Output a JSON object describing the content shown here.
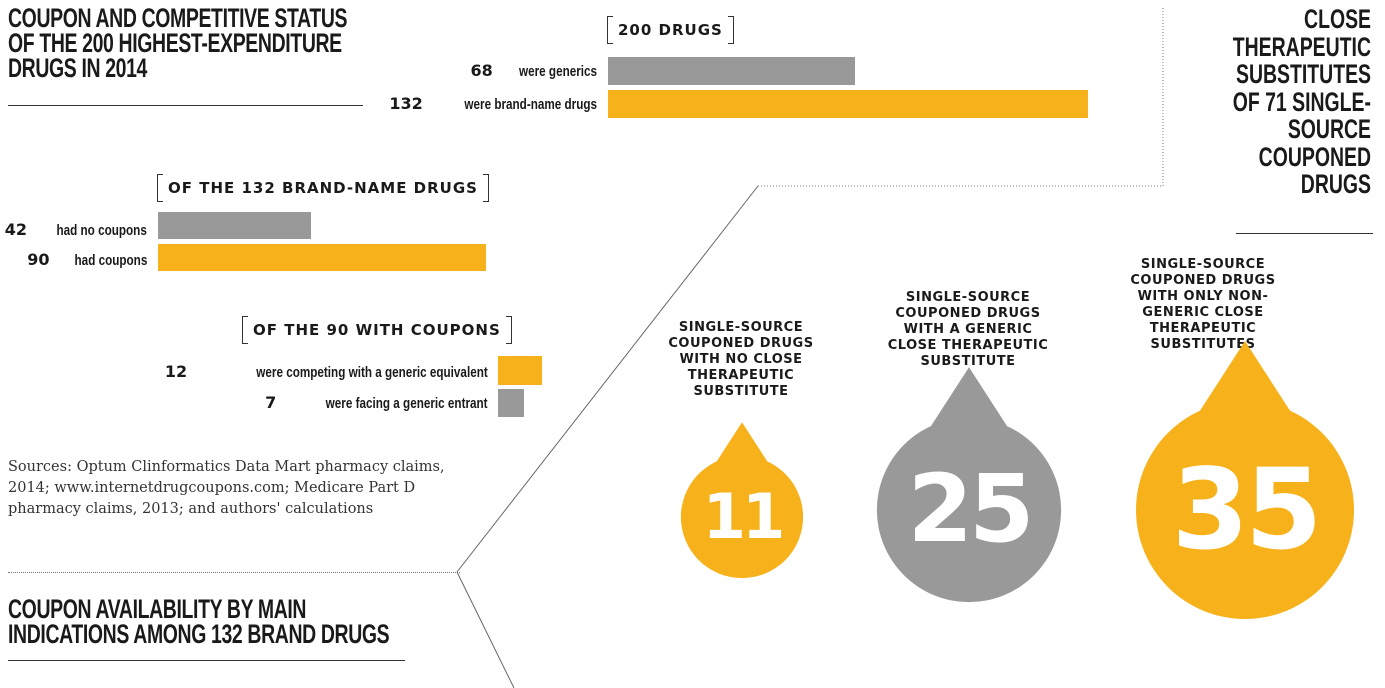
{
  "colors": {
    "orange": "#F7B21B",
    "gray": "#999999",
    "text": "#1a1a1a"
  },
  "main_title": {
    "line1": "COUPON AND COMPETITIVE STATUS",
    "line2": "OF THE 200 HIGHEST-EXPENDITURE",
    "line3": "DRUGS IN 2014"
  },
  "right_title": {
    "l1": "CLOSE",
    "l2": "THERAPEUTIC",
    "l3": "SUBSTITUTES",
    "l4": "OF 71 SINGLE-",
    "l5": "SOURCE",
    "l6": "COUPONED",
    "l7": "DRUGS"
  },
  "bottom_title": {
    "line1": "COUPON AVAILABILITY BY MAIN",
    "line2": "INDICATIONS AMONG 132 BRAND DRUGS"
  },
  "sources": "Sources: Optum Clinformatics Data Mart pharmacy claims, 2014; www.internetdrugcoupons.com; Medicare Part D pharmacy claims, 2013; and authors' calculations",
  "chart_data": [
    {
      "type": "bar",
      "title": "200 DRUGS",
      "categories": [
        "were generics",
        "were brand-name drugs"
      ],
      "values": [
        68,
        132
      ],
      "value_labels": [
        "68",
        "132"
      ],
      "colors": [
        "#999999",
        "#F7B21B"
      ]
    },
    {
      "type": "bar",
      "title": "OF THE 132 BRAND-NAME DRUGS",
      "categories": [
        "had no coupons",
        "had coupons"
      ],
      "values": [
        42,
        90
      ],
      "value_labels": [
        "42",
        "90"
      ],
      "colors": [
        "#999999",
        "#F7B21B"
      ]
    },
    {
      "type": "bar",
      "title": "OF THE 90 WITH COUPONS",
      "categories": [
        "were competing with a generic equivalent",
        "were facing a generic entrant"
      ],
      "values": [
        12,
        7
      ],
      "value_labels": [
        "12",
        "7"
      ],
      "colors": [
        "#F7B21B",
        "#999999"
      ]
    },
    {
      "type": "bubble",
      "categories": [
        "SINGLE-SOURCE COUPONED DRUGS WITH NO CLOSE THERAPEUTIC SUBSTITUTE",
        "SINGLE-SOURCE COUPONED DRUGS WITH A GENERIC CLOSE THERAPEUTIC SUBSTITUTE",
        "SINGLE-SOURCE COUPONED DRUGS WITH ONLY NON-GENERIC CLOSE THERAPEUTIC SUBSTITUTES"
      ],
      "values": [
        11,
        25,
        35
      ],
      "value_labels": [
        "11",
        "25",
        "35"
      ],
      "colors": [
        "#F7B21B",
        "#999999",
        "#F7B21B"
      ]
    }
  ]
}
